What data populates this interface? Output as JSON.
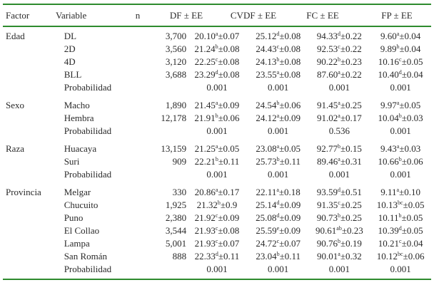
{
  "headers": [
    "Factor",
    "Variable",
    "n",
    "DF ± EE",
    "CVDF ± EE",
    "FC ± EE",
    "FP ± EE"
  ],
  "groups": [
    {
      "factor": "Edad",
      "rows": [
        {
          "var": "DL",
          "n": "3,700",
          "cells": [
            [
              "20.10",
              "a",
              "±0.07"
            ],
            [
              "25.12",
              "d",
              "±0.08"
            ],
            [
              "94.33",
              "d",
              "±0.22"
            ],
            [
              "9.60",
              "a",
              "±0.04"
            ]
          ]
        },
        {
          "var": "2D",
          "n": "3,560",
          "cells": [
            [
              "21.24",
              "b",
              "±0.08"
            ],
            [
              "24.43",
              "c",
              "±0.08"
            ],
            [
              "92.53",
              "c",
              "±0.22"
            ],
            [
              "9.89",
              "b",
              "±0.04"
            ]
          ]
        },
        {
          "var": "4D",
          "n": "3,120",
          "cells": [
            [
              "22.25",
              "c",
              "±0.08"
            ],
            [
              "24.13",
              "b",
              "±0.08"
            ],
            [
              "90.22",
              "b",
              "±0.23"
            ],
            [
              "10.16",
              "c",
              "±0.05"
            ]
          ]
        },
        {
          "var": "BLL",
          "n": "3,688",
          "cells": [
            [
              "23.29",
              "d",
              "±0.08"
            ],
            [
              "23.55",
              "a",
              "±0.08"
            ],
            [
              "87.60",
              "a",
              "±0.22"
            ],
            [
              "10.40",
              "d",
              "±0.04"
            ]
          ]
        },
        {
          "var": "Probabilidad",
          "n": "",
          "cells": [
            [
              "0.001",
              "",
              ""
            ],
            [
              "0.001",
              "",
              ""
            ],
            [
              "0.001",
              "",
              ""
            ],
            [
              "0.001",
              "",
              ""
            ]
          ]
        }
      ]
    },
    {
      "factor": "Sexo",
      "rows": [
        {
          "var": "Macho",
          "n": "1,890",
          "cells": [
            [
              "21.45",
              "a",
              "±0.09"
            ],
            [
              "24.54",
              "b",
              "±0.06"
            ],
            [
              "91.45",
              "a",
              "±0.25"
            ],
            [
              "9.97",
              "a",
              "±0.05"
            ]
          ]
        },
        {
          "var": "Hembra",
          "n": "12,178",
          "cells": [
            [
              "21.91",
              "b",
              "±0.06"
            ],
            [
              "24.12",
              "a",
              "±0.09"
            ],
            [
              "91.02",
              "a",
              "±0.17"
            ],
            [
              "10.04",
              "b",
              "±0.03"
            ]
          ]
        },
        {
          "var": "Probabilidad",
          "n": "",
          "cells": [
            [
              "0.001",
              "",
              ""
            ],
            [
              "0.001",
              "",
              ""
            ],
            [
              "0.536",
              "",
              ""
            ],
            [
              "0.001",
              "",
              ""
            ]
          ]
        }
      ]
    },
    {
      "factor": "Raza",
      "rows": [
        {
          "var": "Huacaya",
          "n": "13,159",
          "cells": [
            [
              "21.25",
              "a",
              "±0.05"
            ],
            [
              "23.08",
              "a",
              "±0.05"
            ],
            [
              "92.77",
              "b",
              "±0.15"
            ],
            [
              "9.43",
              "a",
              "±0.03"
            ]
          ]
        },
        {
          "var": "Suri",
          "n": "909",
          "cells": [
            [
              "22.21",
              "b",
              "±0.11"
            ],
            [
              "25.73",
              "b",
              "±0.11"
            ],
            [
              "89.46",
              "a",
              "±0.31"
            ],
            [
              "10.66",
              "b",
              "±0.06"
            ]
          ]
        },
        {
          "var": "Probabilidad",
          "n": "",
          "cells": [
            [
              "0.001",
              "",
              ""
            ],
            [
              "0.001",
              "",
              ""
            ],
            [
              "0.001",
              "",
              ""
            ],
            [
              "0.001",
              "",
              ""
            ]
          ]
        }
      ]
    },
    {
      "factor": "Provincia",
      "rows": [
        {
          "var": "Melgar",
          "n": "330",
          "cells": [
            [
              "20.86",
              "a",
              "±0.17"
            ],
            [
              "22.11",
              "a",
              "±0.18"
            ],
            [
              "93.59",
              "d",
              "±0.51"
            ],
            [
              "9.11",
              "a",
              "±0.10"
            ]
          ]
        },
        {
          "var": "Chucuito",
          "n": "1,925",
          "cells": [
            [
              "21.32",
              "b",
              "±0.9"
            ],
            [
              "25.14",
              "d",
              "±0.09"
            ],
            [
              "91.35",
              "c",
              "±0.25"
            ],
            [
              "10.13",
              "bc",
              "±0.05"
            ]
          ]
        },
        {
          "var": "Puno",
          "n": "2,380",
          "cells": [
            [
              "21.92",
              "c",
              "±0.09"
            ],
            [
              "25.08",
              "d",
              "±0.09"
            ],
            [
              "90.73",
              "b",
              "±0.25"
            ],
            [
              "10.11",
              "b",
              "±0.05"
            ]
          ]
        },
        {
          "var": "El Collao",
          "n": "3,544",
          "cells": [
            [
              "21.93",
              "c",
              "±0.08"
            ],
            [
              "25.59",
              "e",
              "±0.09"
            ],
            [
              "90.61",
              "ab",
              "±0.23"
            ],
            [
              "10.39",
              "d",
              "±0.05"
            ]
          ]
        },
        {
          "var": "Lampa",
          "n": "5,001",
          "cells": [
            [
              "21.93",
              "c",
              "±0.07"
            ],
            [
              "24.72",
              "c",
              "±0.07"
            ],
            [
              "90.76",
              "b",
              "±0.19"
            ],
            [
              "10.21",
              "c",
              "±0.04"
            ]
          ]
        },
        {
          "var": "San Román",
          "n": "888",
          "cells": [
            [
              "22.33",
              "d",
              "±0.11"
            ],
            [
              "23.04",
              "b",
              "±0.11"
            ],
            [
              "90.01",
              "a",
              "±0.32"
            ],
            [
              "10.12",
              "bc",
              "±0.06"
            ]
          ]
        },
        {
          "var": "Probabilidad",
          "n": "",
          "cells": [
            [
              "0.001",
              "",
              ""
            ],
            [
              "0.001",
              "",
              ""
            ],
            [
              "0.001",
              "",
              ""
            ],
            [
              "0.001",
              "",
              ""
            ]
          ]
        }
      ]
    }
  ]
}
